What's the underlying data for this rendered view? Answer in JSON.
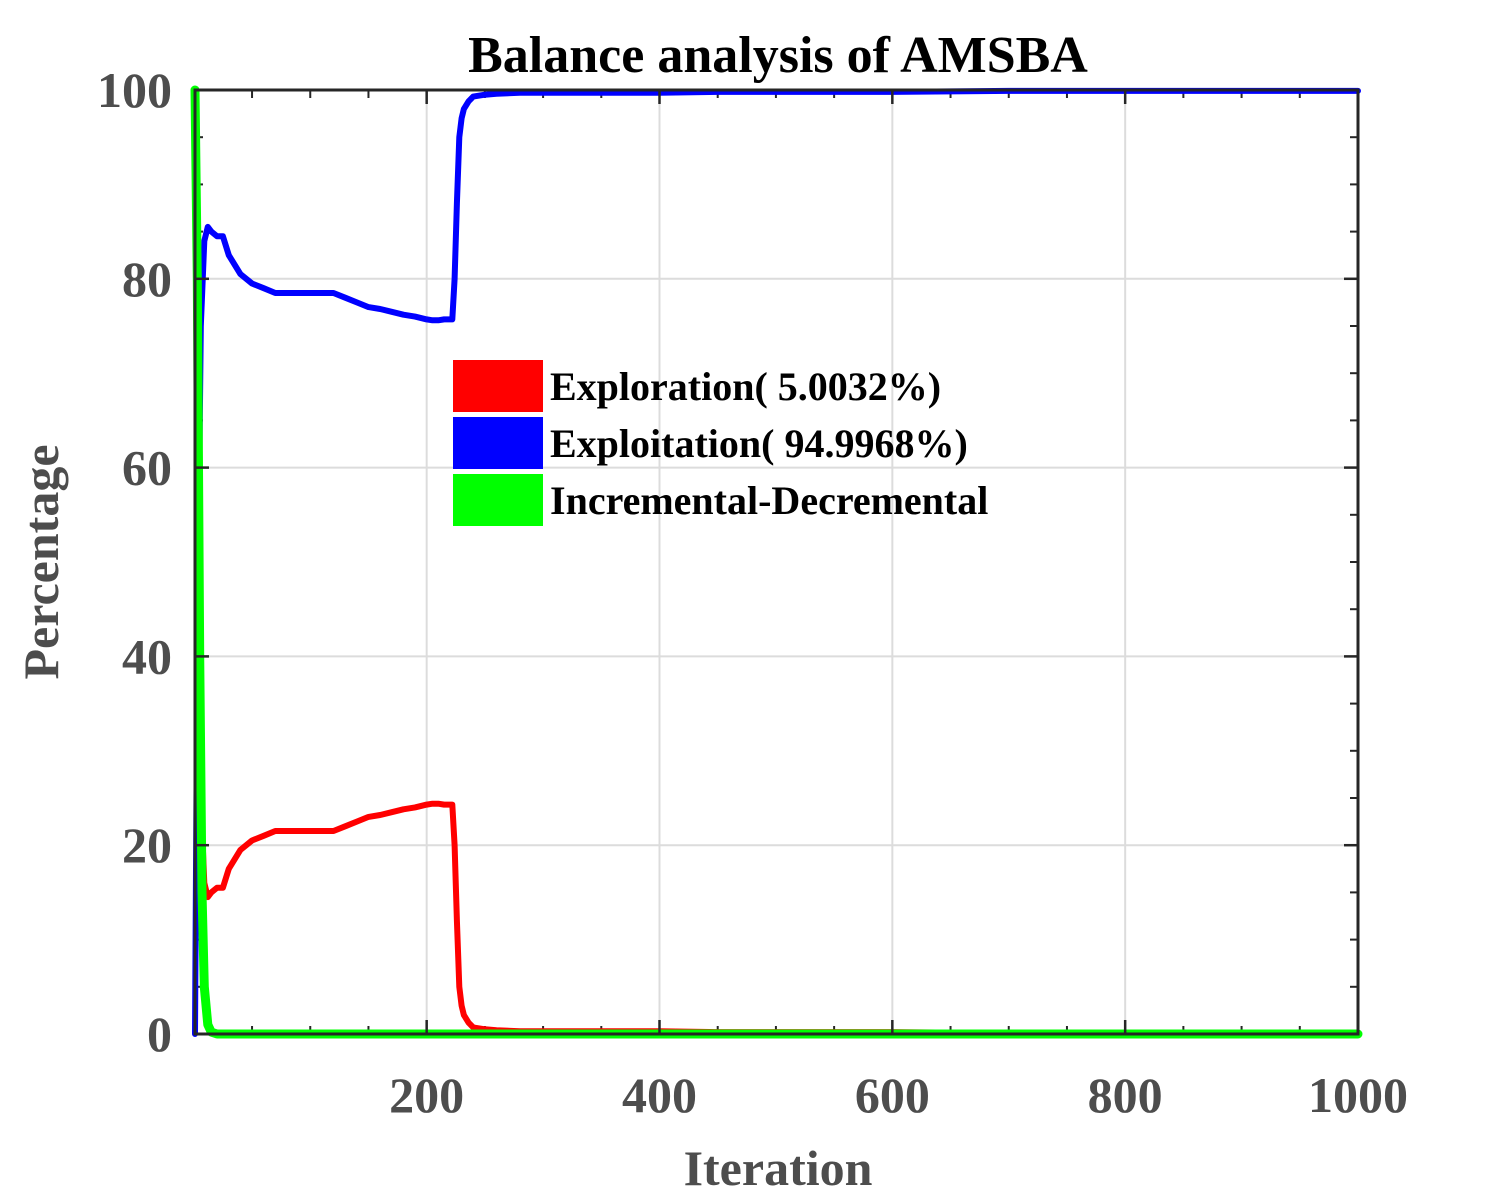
{
  "chart_data": {
    "type": "line",
    "title": "Balance analysis of AMSBA",
    "xlabel": "Iteration",
    "ylabel": "Percentage",
    "xlim": [
      1,
      1000
    ],
    "ylim": [
      0,
      100
    ],
    "xticks": [
      200,
      400,
      600,
      800,
      1000
    ],
    "xtick_labels": [
      "200",
      "400",
      "600",
      "800",
      "1000"
    ],
    "yticks": [
      0,
      20,
      40,
      60,
      80,
      100
    ],
    "ytick_labels": [
      "0",
      "20",
      "40",
      "60",
      "80",
      "100"
    ],
    "grid": true,
    "legend_position": "center",
    "series": [
      {
        "name": "Exploration( 5.0032%)",
        "color": "#ff0000",
        "x": [
          1,
          3,
          6,
          9,
          12,
          15,
          20,
          25,
          30,
          40,
          50,
          60,
          70,
          80,
          90,
          100,
          110,
          120,
          130,
          140,
          150,
          160,
          170,
          180,
          190,
          200,
          205,
          210,
          215,
          222,
          224,
          226,
          228,
          230,
          232,
          236,
          240,
          250,
          260,
          280,
          300,
          350,
          400,
          450,
          500,
          600,
          700,
          800,
          900,
          1000
        ],
        "y": [
          100,
          60,
          25,
          16,
          14.5,
          15,
          15.5,
          15.5,
          17.5,
          19.5,
          20.5,
          21,
          21.5,
          21.5,
          21.5,
          21.5,
          21.5,
          21.5,
          22,
          22.5,
          23,
          23.2,
          23.5,
          23.8,
          24,
          24.3,
          24.4,
          24.4,
          24.3,
          24.3,
          20,
          12,
          5,
          3,
          2,
          1.2,
          0.7,
          0.5,
          0.4,
          0.3,
          0.3,
          0.3,
          0.3,
          0.2,
          0.2,
          0.2,
          0.1,
          0.1,
          0.1,
          0.1
        ]
      },
      {
        "name": "Exploitation( 94.9968%)",
        "color": "#0000ff",
        "x": [
          1,
          3,
          6,
          9,
          12,
          15,
          20,
          25,
          30,
          40,
          50,
          60,
          70,
          80,
          90,
          100,
          110,
          120,
          130,
          140,
          150,
          160,
          170,
          180,
          190,
          200,
          205,
          210,
          215,
          222,
          224,
          226,
          228,
          230,
          232,
          236,
          240,
          250,
          260,
          280,
          300,
          350,
          400,
          450,
          500,
          600,
          700,
          800,
          900,
          1000
        ],
        "y": [
          0,
          40,
          75,
          84,
          85.5,
          85,
          84.5,
          84.5,
          82.5,
          80.5,
          79.5,
          79,
          78.5,
          78.5,
          78.5,
          78.5,
          78.5,
          78.5,
          78,
          77.5,
          77,
          76.8,
          76.5,
          76.2,
          76,
          75.7,
          75.6,
          75.6,
          75.7,
          75.7,
          80,
          88,
          95,
          97,
          98,
          98.8,
          99.3,
          99.5,
          99.6,
          99.7,
          99.7,
          99.7,
          99.7,
          99.8,
          99.8,
          99.8,
          99.9,
          99.9,
          99.9,
          99.9
        ]
      },
      {
        "name": "Incremental-Decremental",
        "color": "#00ff00",
        "x": [
          1,
          3,
          5,
          7,
          9,
          12,
          15,
          20,
          50,
          100,
          200,
          400,
          600,
          800,
          1000
        ],
        "y": [
          100,
          80,
          40,
          15,
          5,
          1,
          0.2,
          0,
          0,
          0,
          0,
          0,
          0,
          0,
          0
        ]
      }
    ]
  }
}
